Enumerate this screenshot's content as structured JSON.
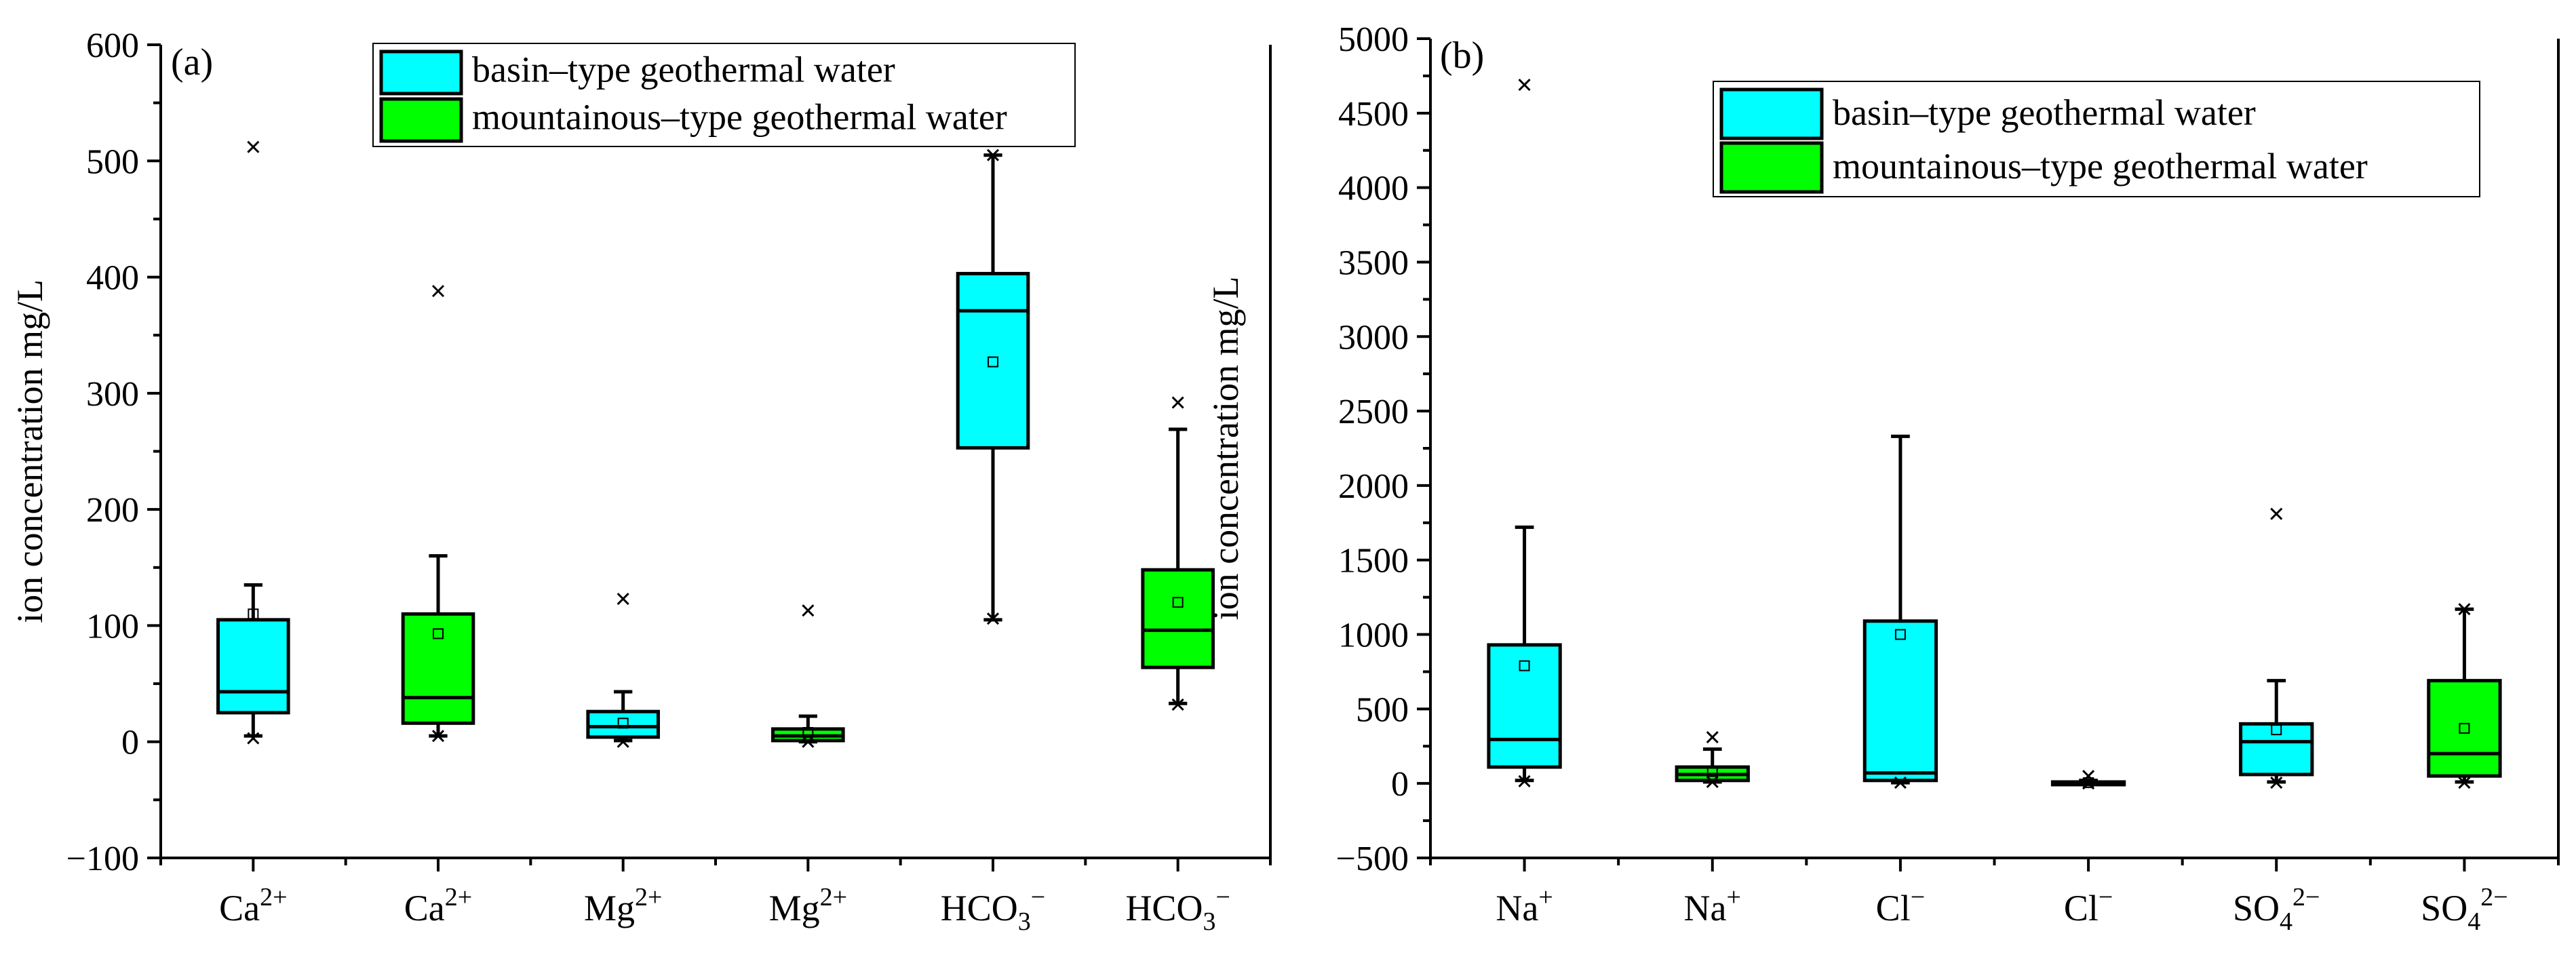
{
  "colors": {
    "basin": "#00FFFF",
    "mountainous": "#00FF00",
    "stroke": "#000000"
  },
  "chart_data": [
    {
      "type": "box",
      "panel_label": "(a)",
      "ylabel": "ion concentration mg/L",
      "ylim": [
        -100,
        600
      ],
      "yticks": [
        "600",
        "500",
        "400",
        "300",
        "200",
        "100",
        "0",
        "−100"
      ],
      "ytick_values": [
        600,
        500,
        400,
        300,
        200,
        100,
        0,
        -100
      ],
      "legend": {
        "placement": "top-center",
        "entries": [
          {
            "label": "basin–type geothermal water",
            "series": "basin"
          },
          {
            "label": "mountainous–type geothermal water",
            "series": "mountainous"
          }
        ]
      },
      "boxes": [
        {
          "ion": "Ca",
          "sup": "2+",
          "series": "basin",
          "q1": 25,
          "median": 43,
          "q3": 105,
          "whisker_low": 5,
          "whisker_high": 135,
          "mean": 110,
          "outliers": [
            512,
            3
          ]
        },
        {
          "ion": "Ca",
          "sup": "2+",
          "series": "mountainous",
          "q1": 16,
          "median": 38,
          "q3": 110,
          "whisker_low": 5,
          "whisker_high": 160,
          "mean": 93,
          "outliers": [
            388,
            5
          ]
        },
        {
          "ion": "Mg",
          "sup": "2+",
          "series": "basin",
          "q1": 4,
          "median": 13,
          "q3": 26,
          "whisker_low": 1,
          "whisker_high": 43,
          "mean": 16,
          "outliers": [
            123,
            0
          ]
        },
        {
          "ion": "Mg",
          "sup": "2+",
          "series": "mountainous",
          "q1": 1,
          "median": 5,
          "q3": 11,
          "whisker_low": 0,
          "whisker_high": 22,
          "mean": 8,
          "outliers": [
            113,
            0
          ]
        },
        {
          "ion": "HCO",
          "sub": "3",
          "sup": "−",
          "series": "basin",
          "q1": 253,
          "median": 371,
          "q3": 403,
          "whisker_low": 105,
          "whisker_high": 505,
          "mean": 327,
          "outliers": [
            106,
            505
          ]
        },
        {
          "ion": "HCO",
          "sub": "3",
          "sup": "−",
          "series": "mountainous",
          "q1": 64,
          "median": 96,
          "q3": 148,
          "whisker_low": 33,
          "whisker_high": 269,
          "mean": 120,
          "outliers": [
            292,
            32
          ]
        }
      ]
    },
    {
      "type": "box",
      "panel_label": "(b)",
      "ylabel": "ion concentration mg/L",
      "ylim": [
        -500,
        5000
      ],
      "yticks": [
        "5000",
        "4500",
        "4000",
        "3500",
        "3000",
        "2500",
        "2000",
        "1500",
        "1000",
        "500",
        "0",
        "−500"
      ],
      "ytick_values": [
        5000,
        4500,
        4000,
        3500,
        3000,
        2500,
        2000,
        1500,
        1000,
        500,
        0,
        -500
      ],
      "legend": {
        "placement": "top-right",
        "entries": [
          {
            "label": "basin–type geothermal water",
            "series": "basin"
          },
          {
            "label": "mountainous–type geothermal water",
            "series": "mountainous"
          }
        ]
      },
      "boxes": [
        {
          "ion": "Na",
          "sup": "+",
          "series": "basin",
          "q1": 110,
          "median": 295,
          "q3": 930,
          "whisker_low": 20,
          "whisker_high": 1720,
          "mean": 790,
          "outliers": [
            4690,
            15
          ]
        },
        {
          "ion": "Na",
          "sup": "+",
          "series": "mountainous",
          "q1": 20,
          "median": 60,
          "q3": 110,
          "whisker_low": 10,
          "whisker_high": 230,
          "mean": 80,
          "outliers": [
            310,
            10
          ]
        },
        {
          "ion": "Cl",
          "sup": "−",
          "series": "basin",
          "q1": 20,
          "median": 70,
          "q3": 1090,
          "whisker_low": 5,
          "whisker_high": 2330,
          "mean": 1000,
          "outliers": [
            5
          ]
        },
        {
          "ion": "Cl",
          "sup": "−",
          "series": "mountainous",
          "q1": 0,
          "median": 5,
          "q3": 10,
          "whisker_low": 0,
          "whisker_high": 20,
          "mean": 5,
          "outliers": [
            50,
            0
          ]
        },
        {
          "ion": "SO",
          "sub": "4",
          "sup": "2−",
          "series": "basin",
          "q1": 60,
          "median": 280,
          "q3": 400,
          "whisker_low": 10,
          "whisker_high": 690,
          "mean": 360,
          "outliers": [
            1810,
            5
          ]
        },
        {
          "ion": "SO",
          "sub": "4",
          "sup": "2−",
          "series": "mountainous",
          "q1": 50,
          "median": 200,
          "q3": 690,
          "whisker_low": 10,
          "whisker_high": 1170,
          "mean": 370,
          "outliers": [
            1170,
            5
          ]
        }
      ]
    }
  ]
}
